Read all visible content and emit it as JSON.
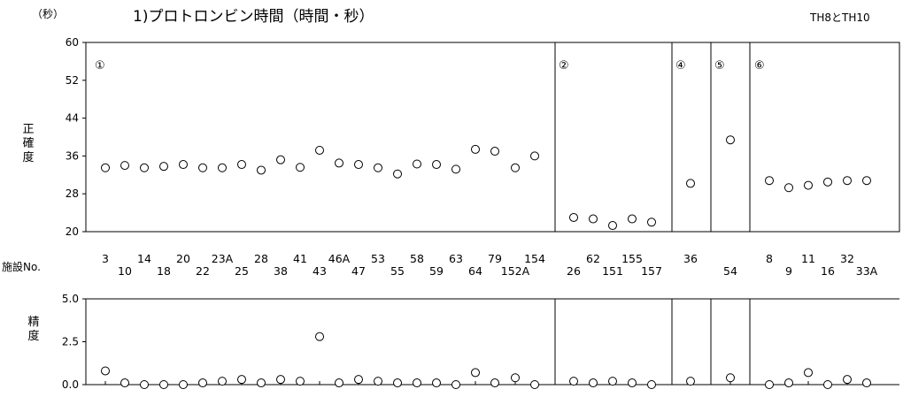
{
  "header": {
    "unit": "（秒）",
    "title": "1)プロトロンビン時間（時間・秒）",
    "note": "TH8とTH10"
  },
  "chart_data": [
    {
      "type": "scatter",
      "ylabel": "正確度",
      "ylim": [
        20,
        60
      ],
      "yticks": [
        "60",
        "52",
        "44",
        "36",
        "28",
        "20"
      ],
      "groups": [
        "①",
        "②",
        "④",
        "⑤",
        "⑥"
      ],
      "x_axis_label": "施設No.",
      "categories": [
        "3",
        "10",
        "14",
        "18",
        "20",
        "22",
        "23A",
        "25",
        "28",
        "38",
        "41",
        "43",
        "46A",
        "47",
        "53",
        "55",
        "58",
        "59",
        "63",
        "64",
        "79",
        "152A",
        "154",
        "26",
        "62",
        "151",
        "155",
        "157",
        "36",
        "54",
        "8",
        "9",
        "11",
        "16",
        "32",
        "33A"
      ],
      "values": [
        33.5,
        34,
        33.5,
        33.8,
        34.2,
        33.5,
        33.5,
        34.2,
        33,
        35.2,
        33.6,
        37.2,
        34.5,
        34.2,
        33.5,
        32.2,
        34.3,
        34.2,
        33.2,
        37.4,
        37,
        33.5,
        36,
        23,
        22.7,
        21.3,
        22.7,
        22,
        30.2,
        39.4,
        30.8,
        29.3,
        29.8,
        30.5,
        30.8,
        30.8
      ],
      "grid": false,
      "legend": "none"
    },
    {
      "type": "scatter",
      "ylabel": "精度",
      "ylim": [
        0,
        5
      ],
      "yticks": [
        "5.0",
        "2.5",
        "0.0"
      ],
      "values": [
        0.8,
        0.1,
        0,
        0,
        0,
        0.1,
        0.2,
        0.3,
        0.1,
        0.3,
        0.2,
        2.8,
        0.1,
        0.3,
        0.2,
        0.1,
        0.1,
        0.1,
        0,
        0.7,
        0.1,
        0.4,
        0,
        0.2,
        0.1,
        0.2,
        0.1,
        0,
        0.2,
        0.4,
        0,
        0.1,
        0.7,
        0,
        0.3,
        0.1
      ],
      "grid": false,
      "legend": "none"
    }
  ]
}
